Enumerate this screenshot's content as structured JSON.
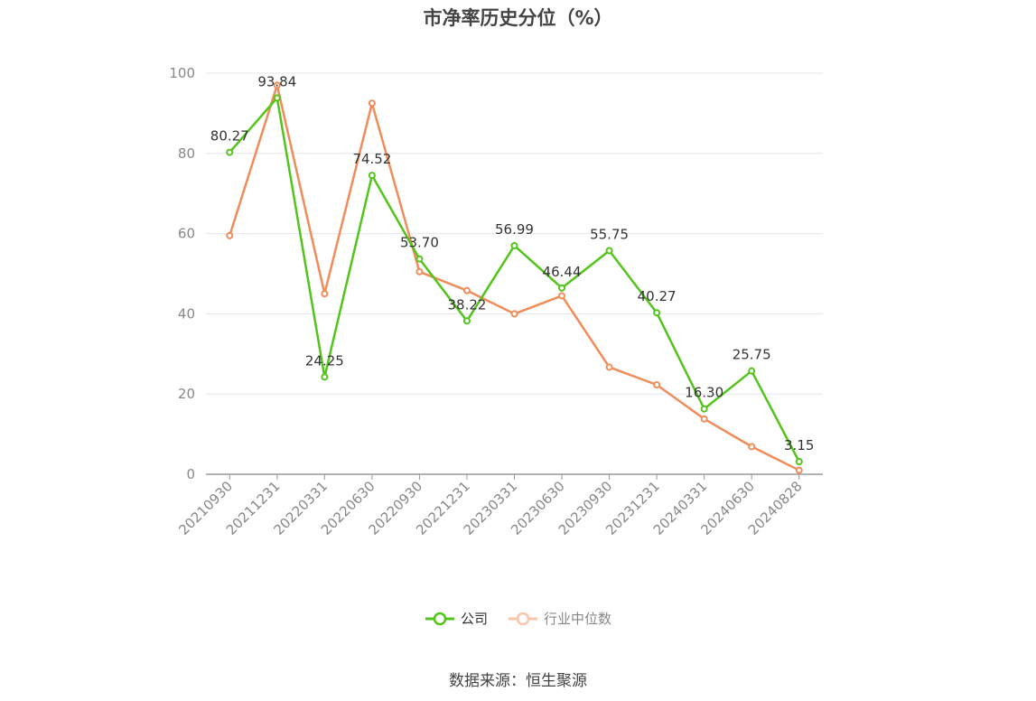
{
  "title": "市净率历史分位（%）",
  "source": "数据来源：恒生聚源",
  "colors": {
    "company": "#52c41a",
    "industry": "#f08c5a",
    "grid": "#e4e6ec",
    "axis": "#999999"
  },
  "chart_data": {
    "type": "line",
    "title": "市净率历史分位（%）",
    "categories": [
      "20210930",
      "20211231",
      "20220331",
      "20220630",
      "20220930",
      "20221231",
      "20230331",
      "20230630",
      "20230930",
      "20231231",
      "20240331",
      "20240630",
      "20240828"
    ],
    "ylim": [
      0,
      100
    ],
    "yticks": [
      0,
      20,
      40,
      60,
      80,
      100
    ],
    "grid": true,
    "legend_position": "bottom",
    "series": [
      {
        "name": "公司",
        "color": "#52c41a",
        "labels": true,
        "values": [
          80.27,
          93.84,
          24.25,
          74.52,
          53.7,
          38.22,
          56.99,
          46.44,
          55.75,
          40.27,
          16.3,
          25.75,
          3.15
        ]
      },
      {
        "name": "行业中位数",
        "color": "#f08c5a",
        "labels": false,
        "values": [
          59.5,
          97.0,
          45.0,
          92.5,
          50.5,
          45.8,
          40.0,
          44.5,
          26.7,
          22.3,
          13.8,
          6.9,
          1.0
        ]
      }
    ]
  }
}
